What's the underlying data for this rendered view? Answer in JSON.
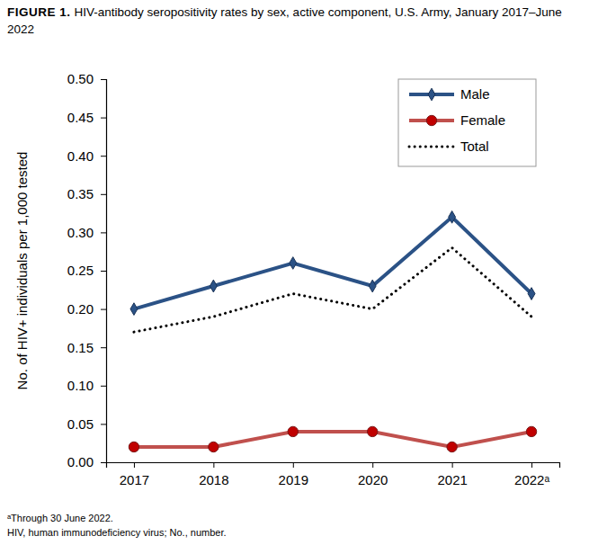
{
  "chart_data": {
    "type": "line",
    "figure_label": "FIGURE 1.",
    "title": "HIV-antibody seropositivity rates by sex, active component, U.S. Army, January 2017–June 2022",
    "y_label": "No. of HIV+ individuals per 1,000 tested",
    "categories": [
      "2017",
      "2018",
      "2019",
      "2020",
      "2021",
      "2022ᵃ"
    ],
    "series": [
      {
        "name": "Male",
        "color": "#2b5286",
        "marker": "diamond",
        "line_style": "solid",
        "values": [
          0.2,
          0.23,
          0.26,
          0.23,
          0.32,
          0.22
        ]
      },
      {
        "name": "Female",
        "color": "#c0504d",
        "marker": "circle",
        "line_style": "solid",
        "values": [
          0.02,
          0.02,
          0.04,
          0.04,
          0.02,
          0.04
        ]
      },
      {
        "name": "Total",
        "color": "#000000",
        "marker": "none",
        "line_style": "dotted",
        "values": [
          0.17,
          0.19,
          0.22,
          0.2,
          0.28,
          0.19
        ]
      }
    ],
    "ylim": [
      0,
      0.5
    ],
    "yticks": [
      {
        "value": 0,
        "label": "0.00"
      },
      0.05,
      {
        "value": 0.1,
        "label": "0.10"
      },
      0.15,
      {
        "value": 0.2,
        "label": "0.20"
      },
      0.25,
      {
        "value": 0.3,
        "label": "0.30"
      },
      0.35,
      {
        "value": 0.4,
        "label": "0.40"
      },
      0.45,
      {
        "value": 0.5,
        "label": "0.50"
      }
    ],
    "grid": false,
    "legend": "upper right",
    "notes": [
      "ᵃThrough 30 June 2022.",
      "HIV, human immunodeficiency virus; No., number."
    ]
  }
}
